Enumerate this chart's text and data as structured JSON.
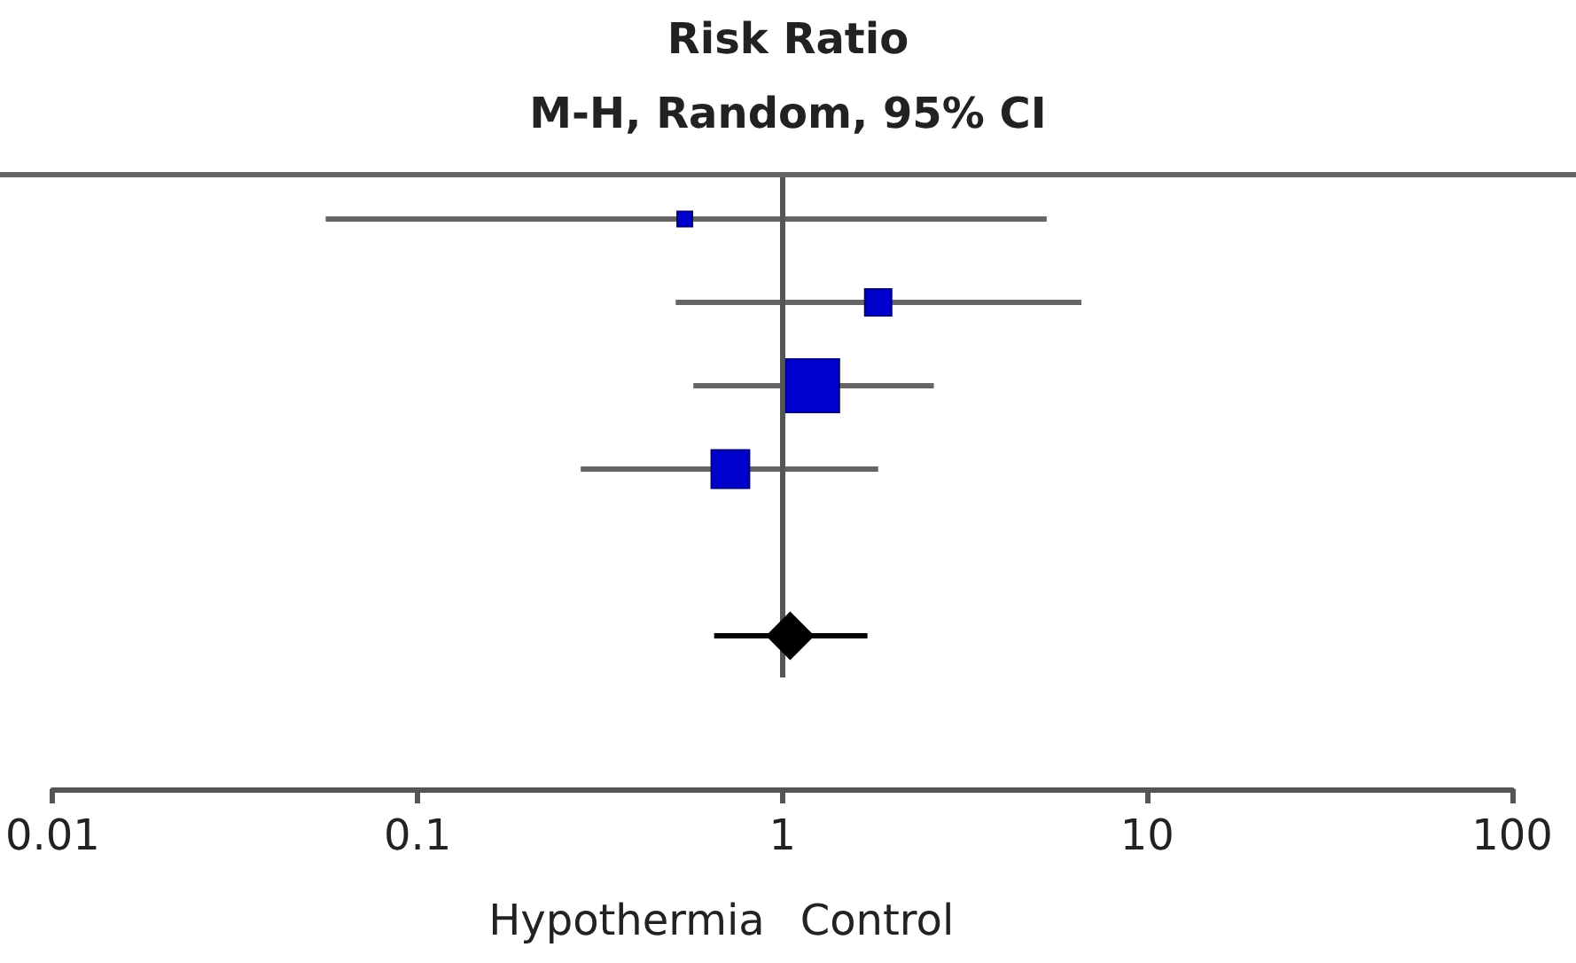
{
  "chart_data": {
    "type": "scatter",
    "title": "Risk Ratio",
    "subtitle": "M-H, Random, 95% CI",
    "orientation": "horizontal",
    "log": "x",
    "categories": [
      null,
      null,
      null,
      null,
      null,
      null
    ],
    "series": [
      {
        "color": "#0000cc",
        "marker": "square",
        "values": [
          0.54,
          1.83,
          1.21,
          0.72,
          null,
          null
        ],
        "errors": [
          [
            0.056,
            5.3
          ],
          [
            0.51,
            6.6
          ],
          [
            0.57,
            2.6
          ],
          [
            0.28,
            1.83
          ],
          null,
          null
        ],
        "sizes": [
          0.08,
          0.25,
          1,
          0.51,
          null,
          null
        ]
      },
      {
        "color": "#000000",
        "marker": "diamond",
        "values": [
          null,
          null,
          null,
          null,
          null,
          1.05
        ],
        "errors": [
          null,
          null,
          null,
          null,
          null,
          [
            0.65,
            1.71
          ]
        ]
      }
    ],
    "xlim": [
      0.01,
      100
    ],
    "xticks": [
      0.01,
      0.1,
      1,
      10,
      100
    ],
    "ref_lines": [
      {
        "axis": "x",
        "value": 1
      }
    ],
    "annotations": [
      "Hypothermia",
      "Control"
    ],
    "grid": false
  }
}
